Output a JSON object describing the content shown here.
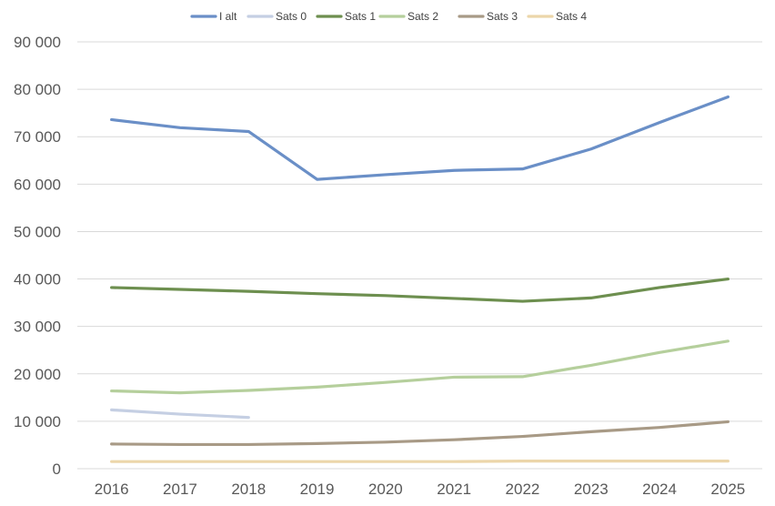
{
  "chart_data": {
    "type": "line",
    "title": "",
    "xlabel": "",
    "ylabel": "",
    "x": [
      "2016",
      "2017",
      "2018",
      "2019",
      "2020",
      "2021",
      "2022",
      "2023",
      "2024",
      "2025"
    ],
    "ylim": [
      0,
      90000
    ],
    "yticks": [
      0,
      10000,
      20000,
      30000,
      40000,
      50000,
      60000,
      70000,
      80000,
      90000
    ],
    "ytick_labels": [
      "0",
      "10 000",
      "20 000",
      "30 000",
      "40 000",
      "50 000",
      "60 000",
      "70 000",
      "80 000",
      "90 000"
    ],
    "grid": true,
    "legend_position": "top",
    "series": [
      {
        "name": "I alt",
        "color": "#6a8fc7",
        "values": [
          73600,
          71900,
          71100,
          61000,
          62000,
          62900,
          63200,
          67400,
          73000,
          78400
        ]
      },
      {
        "name": "Sats 0",
        "color": "#c5cfe3",
        "values": [
          12400,
          11500,
          10800,
          null,
          null,
          null,
          null,
          null,
          null,
          null
        ]
      },
      {
        "name": "Sats 1",
        "color": "#6d8f4f",
        "values": [
          38200,
          37800,
          37400,
          36900,
          36500,
          35900,
          35300,
          36000,
          38200,
          40000
        ]
      },
      {
        "name": "Sats 2",
        "color": "#b5cf9c",
        "values": [
          16400,
          16000,
          16500,
          17200,
          18200,
          19300,
          19400,
          21800,
          24500,
          26900
        ]
      },
      {
        "name": "Sats 3",
        "color": "#a89a86",
        "values": [
          5200,
          5100,
          5100,
          5300,
          5600,
          6100,
          6800,
          7800,
          8700,
          9900
        ]
      },
      {
        "name": "Sats 4",
        "color": "#ecd6aa",
        "values": [
          1500,
          1500,
          1500,
          1500,
          1500,
          1500,
          1600,
          1600,
          1600,
          1600
        ]
      }
    ]
  }
}
